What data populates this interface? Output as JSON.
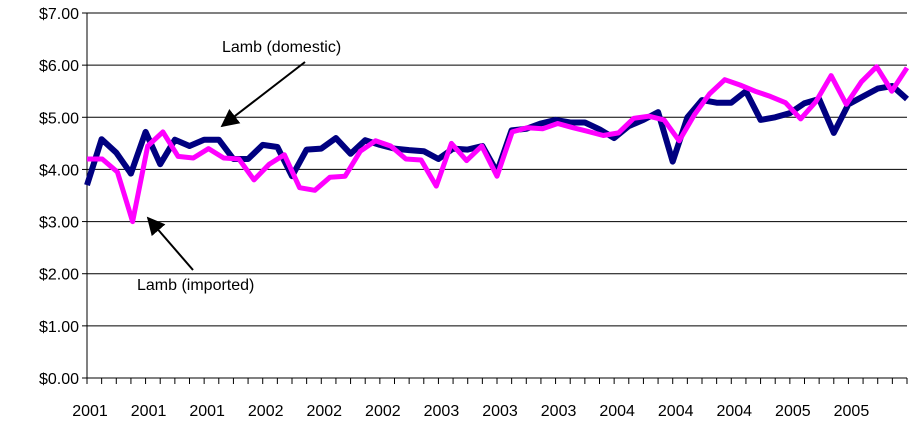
{
  "chart_data": {
    "type": "line",
    "title": "",
    "xlabel": "",
    "ylabel": "",
    "ylim": [
      0,
      7
    ],
    "y_ticks": [
      "$0.00",
      "$1.00",
      "$2.00",
      "$3.00",
      "$4.00",
      "$5.00",
      "$6.00",
      "$7.00"
    ],
    "grid": "horizontal",
    "legend": "none",
    "x_tick_labels": [
      "2001",
      "2001",
      "2001",
      "2002",
      "2002",
      "2002",
      "2003",
      "2003",
      "2003",
      "2004",
      "2004",
      "2004",
      "2005",
      "2005"
    ],
    "annotations": [
      {
        "text": "Lamb (domestic)",
        "series": "domestic"
      },
      {
        "text": "Lamb (imported)",
        "series": "imported"
      }
    ],
    "series": [
      {
        "key": "domestic",
        "color": "#000080",
        "values": [
          3.7,
          4.58,
          4.32,
          3.92,
          4.72,
          4.1,
          4.57,
          4.45,
          4.57,
          4.57,
          4.2,
          4.2,
          4.47,
          4.43,
          3.87,
          4.38,
          4.4,
          4.6,
          4.3,
          4.56,
          4.47,
          4.4,
          4.37,
          4.35,
          4.2,
          4.4,
          4.38,
          4.45,
          3.95,
          4.75,
          4.78,
          4.88,
          4.95,
          4.9,
          4.9,
          4.77,
          4.6,
          4.83,
          4.95,
          5.1,
          4.15,
          5.0,
          5.33,
          5.28,
          5.28,
          5.5,
          4.95,
          5.0,
          5.08,
          5.27,
          5.35,
          4.7,
          5.25,
          5.4,
          5.55,
          5.6,
          5.35
        ]
      },
      {
        "key": "imported",
        "color": "#ff00ff",
        "values": [
          4.2,
          4.2,
          3.95,
          3.0,
          4.45,
          4.72,
          4.25,
          4.22,
          4.4,
          4.22,
          4.2,
          3.8,
          4.1,
          4.28,
          3.65,
          3.6,
          3.85,
          3.87,
          4.35,
          4.55,
          4.45,
          4.2,
          4.18,
          3.68,
          4.5,
          4.17,
          4.45,
          3.87,
          4.72,
          4.8,
          4.78,
          4.88,
          4.8,
          4.73,
          4.65,
          4.7,
          4.98,
          5.02,
          4.95,
          4.55,
          5.05,
          5.45,
          5.72,
          5.62,
          5.5,
          5.4,
          5.28,
          4.97,
          5.3,
          5.8,
          5.25,
          5.68,
          5.97,
          5.5,
          5.95
        ]
      }
    ]
  }
}
